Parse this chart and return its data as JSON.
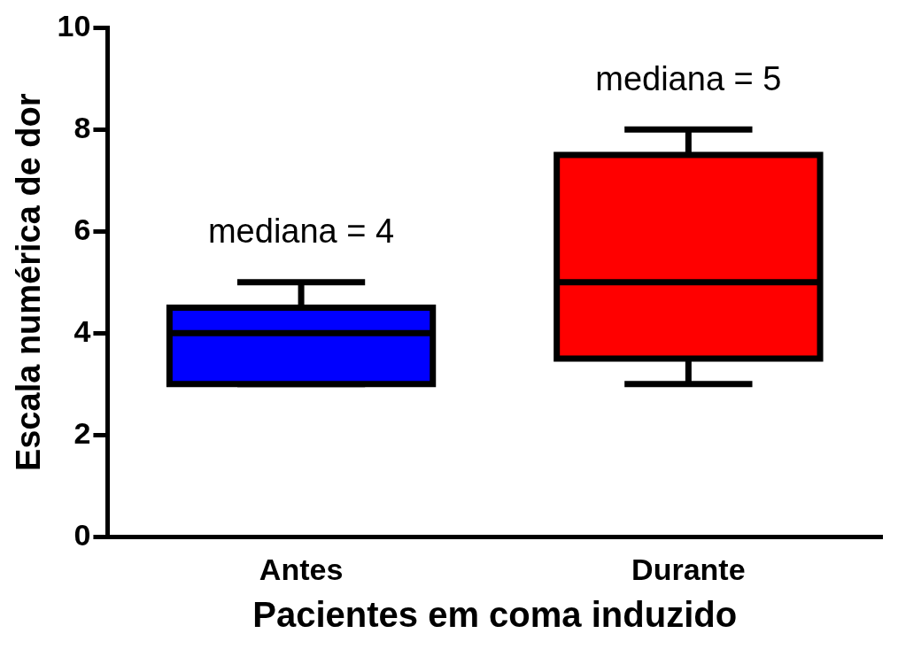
{
  "chart_data": {
    "type": "box",
    "xlabel": "Pacientes em coma induzido",
    "ylabel": "Escala numérica de dor",
    "categories": [
      "Antes",
      "Durante"
    ],
    "boxes": [
      {
        "low": 3,
        "q1": 3,
        "median": 4,
        "q3": 4.5,
        "high": 5
      },
      {
        "low": 3,
        "q1": 3.5,
        "median": 5,
        "q3": 7.5,
        "high": 8
      }
    ],
    "colors": [
      "#0000ff",
      "#ff0000"
    ],
    "ylim": [
      0,
      10
    ],
    "yticks": [
      0,
      2,
      4,
      6,
      8,
      10
    ],
    "grid": false,
    "annotations": [
      "mediana = 4",
      "mediana = 5"
    ]
  }
}
